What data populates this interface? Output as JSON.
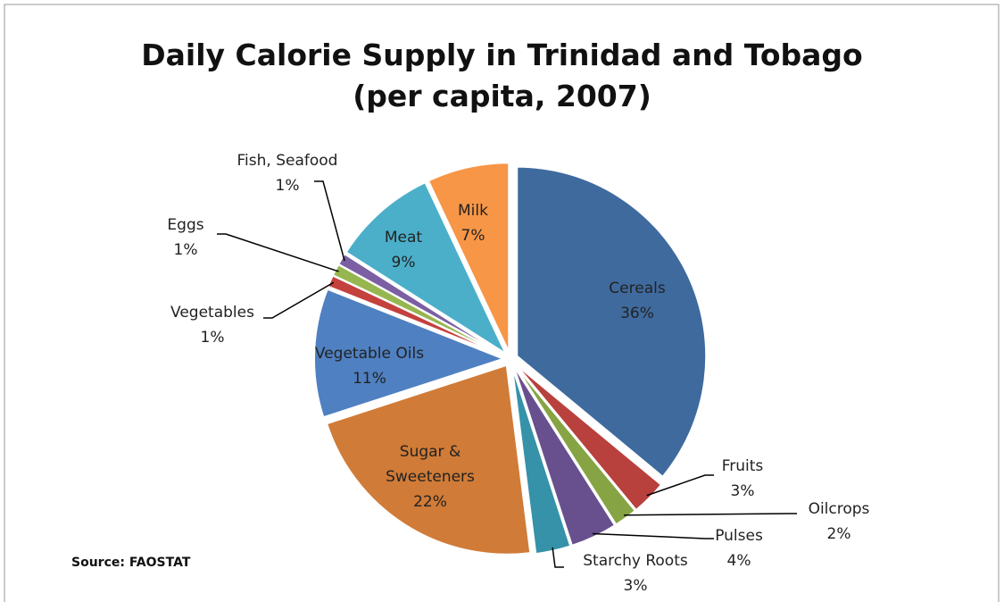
{
  "chart_data": {
    "type": "pie",
    "title": [
      "Daily Calorie Supply in Trinidad and Tobago",
      "(per capita, 2007)"
    ],
    "categories": [
      "Cereals",
      "Fruits",
      "Oilcrops",
      "Pulses",
      "Starchy Roots",
      "Sugar & Sweeteners",
      "Vegetable Oils",
      "Vegetables",
      "Eggs",
      "Fish, Seafood",
      "Meat",
      "Milk"
    ],
    "values": [
      36,
      3,
      2,
      4,
      3,
      22,
      11,
      1,
      1,
      1,
      9,
      7
    ],
    "value_labels": [
      "36%",
      "3%",
      "2%",
      "4%",
      "3%",
      "22%",
      "11%",
      "1%",
      "1%",
      "1%",
      "9%",
      "7%"
    ],
    "colors": [
      "#3f6a9e",
      "#b8413d",
      "#86a443",
      "#68508e",
      "#3592a9",
      "#d07b37",
      "#4f80c1",
      "#c4413e",
      "#96b650",
      "#7b5fa2",
      "#4bafc9",
      "#f79646"
    ],
    "annotations": [
      "Source: FAOSTAT"
    ]
  }
}
